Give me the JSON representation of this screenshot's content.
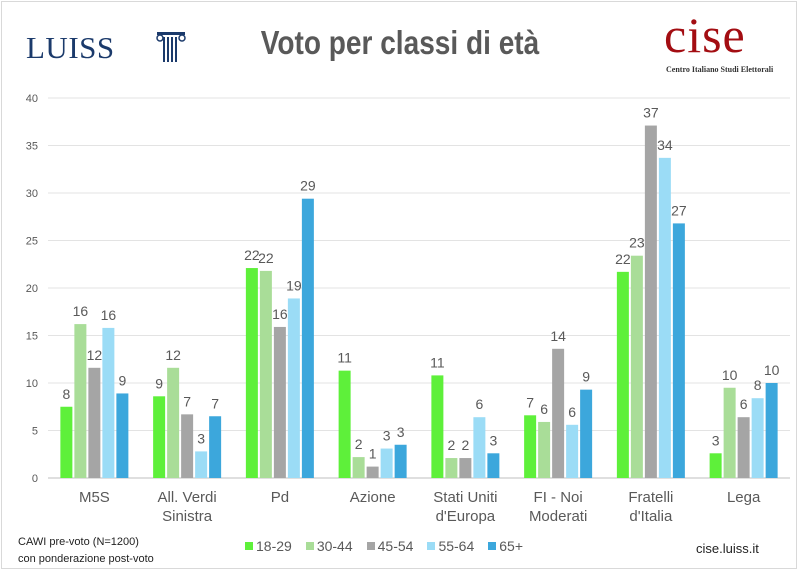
{
  "header": {
    "title": "Voto per classi di età",
    "logo_left": "LUISS",
    "logo_right": "cise",
    "logo_right_sub": "Centro Italiano Studi Elettorali"
  },
  "footer": {
    "note_line1": "CAWI pre-voto (N=1200)",
    "note_line2": "con ponderazione post-voto",
    "site": "cise.luiss.it"
  },
  "chart_data": {
    "type": "bar",
    "title": "Voto per classi di età",
    "ylim": [
      0,
      40
    ],
    "yticks": [
      0,
      5,
      10,
      15,
      20,
      25,
      30,
      35,
      40
    ],
    "grid": true,
    "legend_position": "bottom",
    "categories": [
      [
        "M5S"
      ],
      [
        "All. Verdi",
        "Sinistra"
      ],
      [
        "Pd"
      ],
      [
        "Azione"
      ],
      [
        "Stati Uniti",
        "d'Europa"
      ],
      [
        "FI - Noi",
        "Moderati"
      ],
      [
        "Fratelli",
        "d'Italia"
      ],
      [
        "Lega"
      ]
    ],
    "series": [
      {
        "name": "18-29",
        "color": "#5ef03a",
        "values": [
          7.5,
          8.6,
          22.1,
          11.3,
          10.8,
          6.6,
          21.7,
          2.6
        ],
        "labels": [
          "8",
          "9",
          "22",
          "11",
          "11",
          "7",
          "22",
          "3"
        ]
      },
      {
        "name": "30-44",
        "color": "#a9dd98",
        "values": [
          16.2,
          11.6,
          21.8,
          2.2,
          2.1,
          5.9,
          23.4,
          9.5
        ],
        "labels": [
          "16",
          "12",
          "22",
          "2",
          "2",
          "6",
          "23",
          "10"
        ]
      },
      {
        "name": "45-54",
        "color": "#a5a5a5",
        "values": [
          11.6,
          6.7,
          15.9,
          1.2,
          2.1,
          13.6,
          37.1,
          6.4
        ],
        "labels": [
          "12",
          "7",
          "16",
          "1",
          "2",
          "14",
          "37",
          "6"
        ]
      },
      {
        "name": "55-64",
        "color": "#9bdcf6",
        "values": [
          15.8,
          2.8,
          18.9,
          3.1,
          6.4,
          5.6,
          33.7,
          8.4
        ],
        "labels": [
          "16",
          "3",
          "19",
          "3",
          "6",
          "6",
          "34",
          "8"
        ]
      },
      {
        "name": "65+",
        "color": "#3ca7dc",
        "values": [
          8.9,
          6.5,
          29.4,
          3.5,
          2.6,
          9.3,
          26.8,
          10.0
        ],
        "labels": [
          "9",
          "7",
          "29",
          "3",
          "3",
          "9",
          "27",
          "10"
        ]
      }
    ]
  }
}
